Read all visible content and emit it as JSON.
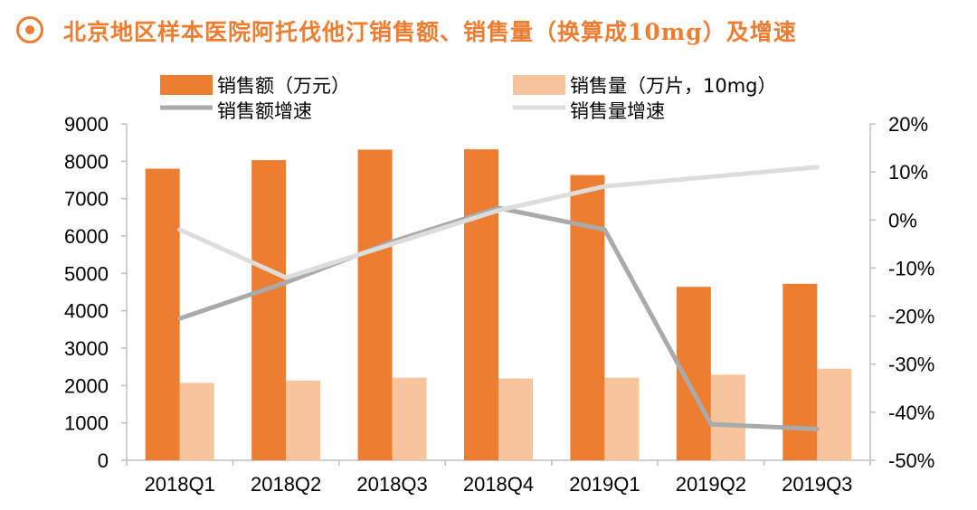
{
  "header": {
    "title": "北京地区样本医院阿托伐他汀销售额、销售量（换算成10mg）及增速",
    "icon": "circle-bullet-icon",
    "accent_color": "#ED7D31"
  },
  "chart_data": {
    "type": "bar",
    "title": "北京地区样本医院阿托伐他汀销售额、销售量（换算成10mg）及增速",
    "categories": [
      "2018Q1",
      "2018Q2",
      "2018Q3",
      "2018Q4",
      "2019Q1",
      "2019Q2",
      "2019Q3"
    ],
    "series": [
      {
        "name": "销售额（万元）",
        "type": "bar",
        "axis": "left",
        "color": "#ED7D31",
        "values": [
          7800,
          8030,
          8310,
          8320,
          7630,
          4640,
          4720
        ]
      },
      {
        "name": "销售量（万片，10mg）",
        "type": "bar",
        "axis": "left",
        "color": "#F8C49B",
        "values": [
          2070,
          2130,
          2210,
          2190,
          2210,
          2290,
          2450
        ]
      },
      {
        "name": "销售额增速",
        "type": "line",
        "axis": "right",
        "color": "#AAAAAA",
        "values": [
          -20.5,
          -13,
          -4.5,
          2.5,
          -2,
          -42.5,
          -43.5
        ]
      },
      {
        "name": "销售量增速",
        "type": "line",
        "axis": "right",
        "color": "#DDDDDD",
        "values": [
          -2,
          -12,
          -5,
          2,
          7,
          9,
          11
        ]
      }
    ],
    "y_left": {
      "min": 0,
      "max": 9000,
      "step": 1000,
      "ticks": [
        "0",
        "1000",
        "2000",
        "3000",
        "4000",
        "5000",
        "6000",
        "7000",
        "8000",
        "9000"
      ]
    },
    "y_right": {
      "min": -50,
      "max": 20,
      "step": 10,
      "ticks": [
        "-50%",
        "-40%",
        "-30%",
        "-20%",
        "-10%",
        "0%",
        "10%",
        "20%"
      ]
    },
    "xlabel": "",
    "ylabel": "",
    "grid": false,
    "legend": "top"
  }
}
